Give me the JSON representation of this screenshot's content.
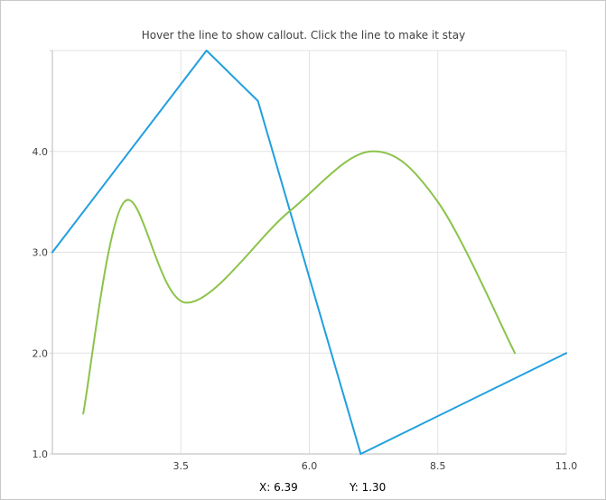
{
  "chart_data": {
    "type": "line",
    "title": "Hover the line to show callout. Click the line to make it stay",
    "xlabel": "",
    "ylabel": "",
    "xlim": [
      1.0,
      11.0
    ],
    "ylim": [
      1.0,
      5.0
    ],
    "x_ticks": [
      3.5,
      6.0,
      8.5,
      11.0
    ],
    "x_tick_labels": [
      "3.5",
      "6.0",
      "8.5",
      "11.0"
    ],
    "y_ticks": [
      1.0,
      2.0,
      3.0,
      4.0
    ],
    "y_tick_labels": [
      "1.0",
      "2.0",
      "3.0",
      "4.0"
    ],
    "grid": true,
    "series": [
      {
        "color": "#209fdf",
        "smooth": false,
        "points": [
          [
            1.0,
            3.0
          ],
          [
            4.0,
            5.0
          ],
          [
            5.0,
            4.5
          ],
          [
            7.0,
            1.0
          ],
          [
            11.0,
            2.0
          ]
        ]
      },
      {
        "color": "#8bc34a",
        "smooth": true,
        "points": [
          [
            1.6,
            1.4
          ],
          [
            2.4,
            3.5
          ],
          [
            3.6,
            2.5
          ],
          [
            5.6,
            3.4
          ],
          [
            7.2,
            4.0
          ],
          [
            8.5,
            3.5
          ],
          [
            10.0,
            2.0
          ]
        ]
      }
    ]
  },
  "readout": {
    "x_text": "X: 6.39",
    "y_text": "Y: 1.30"
  }
}
